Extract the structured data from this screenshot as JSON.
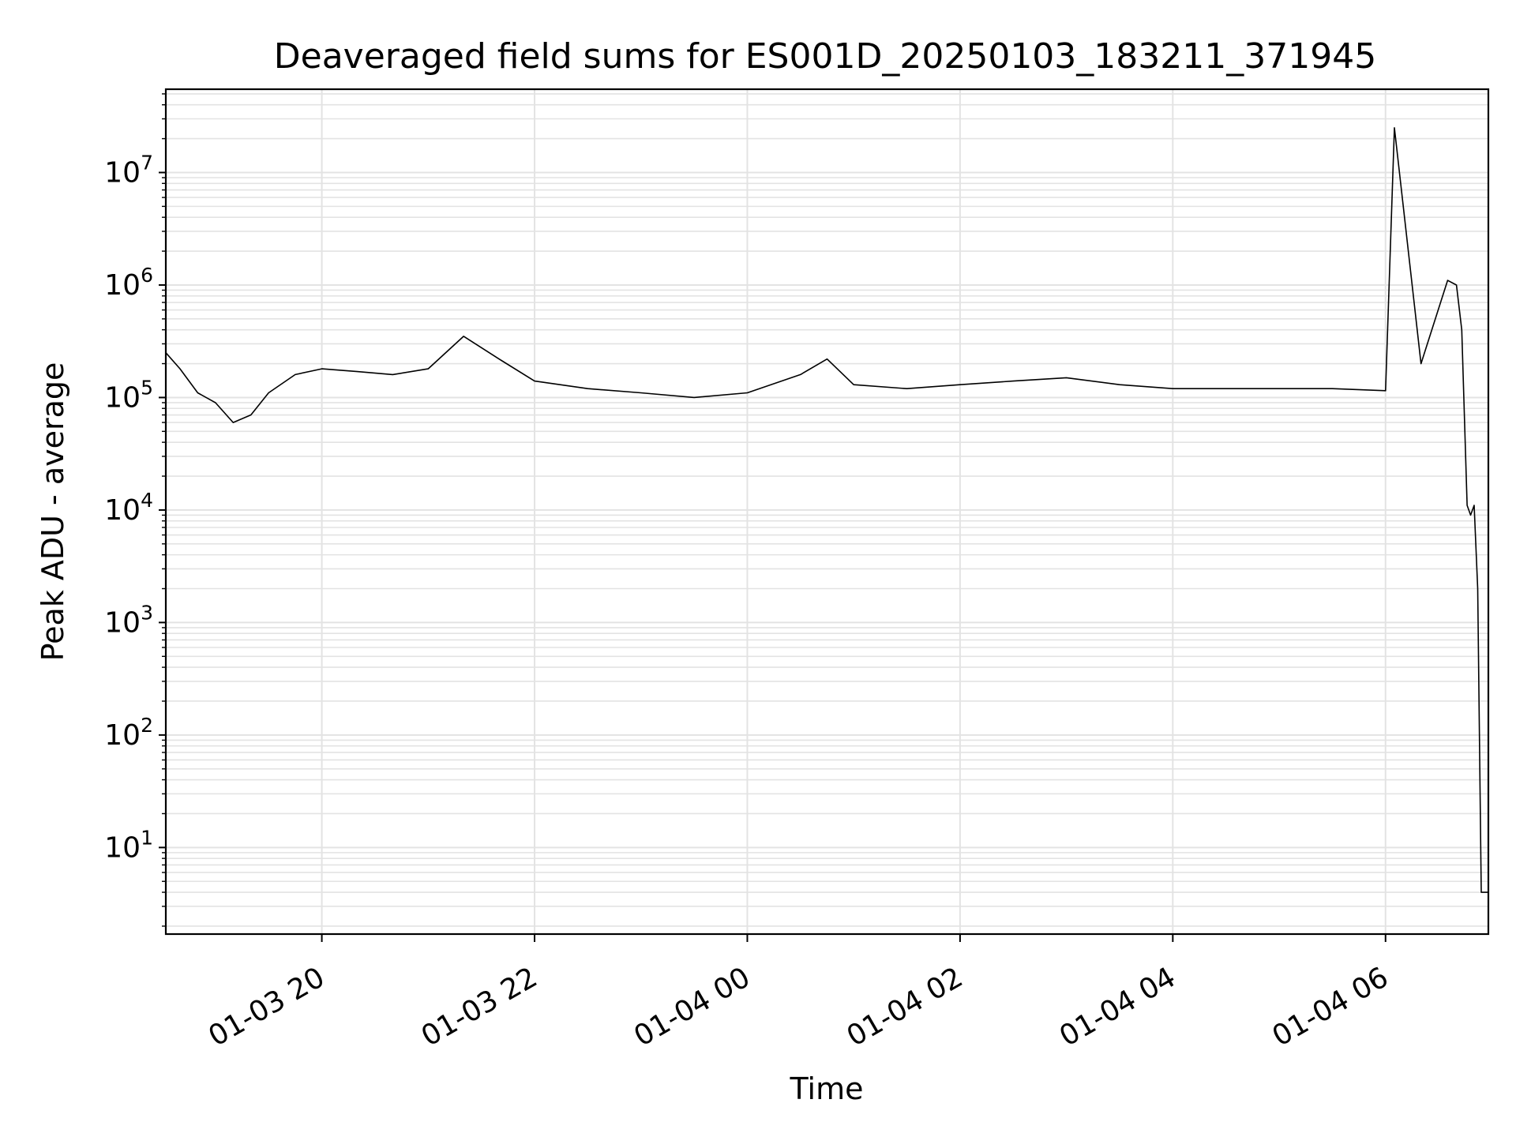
{
  "chart_data": {
    "type": "line",
    "title": "Deaveraged field sums for ES001D_20250103_183211_371945",
    "xlabel": "Time",
    "ylabel": "Peak ADU - average",
    "x_scale": "time",
    "y_scale": "log",
    "xlim": [
      "2025-01-03 18:32",
      "2025-01-04 06:58"
    ],
    "ylim": [
      1.7,
      55000000
    ],
    "grid": true,
    "legend": "none",
    "line_color": "#000000",
    "x_ticks": [
      {
        "value": "2025-01-03 20:00",
        "label": "01-03 20"
      },
      {
        "value": "2025-01-03 22:00",
        "label": "01-03 22"
      },
      {
        "value": "2025-01-04 00:00",
        "label": "01-04 00"
      },
      {
        "value": "2025-01-04 02:00",
        "label": "01-04 02"
      },
      {
        "value": "2025-01-04 04:00",
        "label": "01-04 04"
      },
      {
        "value": "2025-01-04 06:00",
        "label": "01-04 06"
      }
    ],
    "y_ticks": [
      {
        "value": 10,
        "base": "10",
        "exp": "1"
      },
      {
        "value": 100,
        "base": "10",
        "exp": "2"
      },
      {
        "value": 1000,
        "base": "10",
        "exp": "3"
      },
      {
        "value": 10000,
        "base": "10",
        "exp": "4"
      },
      {
        "value": 100000,
        "base": "10",
        "exp": "5"
      },
      {
        "value": 1000000,
        "base": "10",
        "exp": "6"
      },
      {
        "value": 10000000,
        "base": "10",
        "exp": "7"
      }
    ],
    "series": [
      {
        "x": [
          "2025-01-03 18:32",
          "2025-01-03 18:40",
          "2025-01-03 18:50",
          "2025-01-03 19:00",
          "2025-01-03 19:10",
          "2025-01-03 19:20",
          "2025-01-03 19:30",
          "2025-01-03 19:45",
          "2025-01-03 20:00",
          "2025-01-03 20:20",
          "2025-01-03 20:40",
          "2025-01-03 21:00",
          "2025-01-03 21:20",
          "2025-01-03 21:40",
          "2025-01-03 22:00",
          "2025-01-03 22:30",
          "2025-01-03 23:00",
          "2025-01-03 23:30",
          "2025-01-04 00:00",
          "2025-01-04 00:30",
          "2025-01-04 00:45",
          "2025-01-04 01:00",
          "2025-01-04 01:30",
          "2025-01-04 02:00",
          "2025-01-04 02:30",
          "2025-01-04 03:00",
          "2025-01-04 03:30",
          "2025-01-04 04:00",
          "2025-01-04 04:30",
          "2025-01-04 05:00",
          "2025-01-04 05:30",
          "2025-01-04 06:00",
          "2025-01-04 06:05",
          "2025-01-04 06:20",
          "2025-01-04 06:35",
          "2025-01-04 06:40",
          "2025-01-04 06:43",
          "2025-01-04 06:46",
          "2025-01-04 06:48",
          "2025-01-04 06:50",
          "2025-01-04 06:52",
          "2025-01-04 06:54",
          "2025-01-04 06:58"
        ],
        "y": [
          250000,
          180000,
          110000,
          90000,
          60000,
          70000,
          110000,
          160000,
          180000,
          170000,
          160000,
          180000,
          350000,
          220000,
          140000,
          120000,
          110000,
          100000,
          110000,
          160000,
          220000,
          130000,
          120000,
          130000,
          140000,
          150000,
          130000,
          120000,
          120000,
          120000,
          120000,
          115000,
          25000000,
          200000,
          1100000,
          1000000,
          400000,
          11000,
          9000,
          11000,
          2000,
          4,
          4
        ]
      }
    ]
  }
}
